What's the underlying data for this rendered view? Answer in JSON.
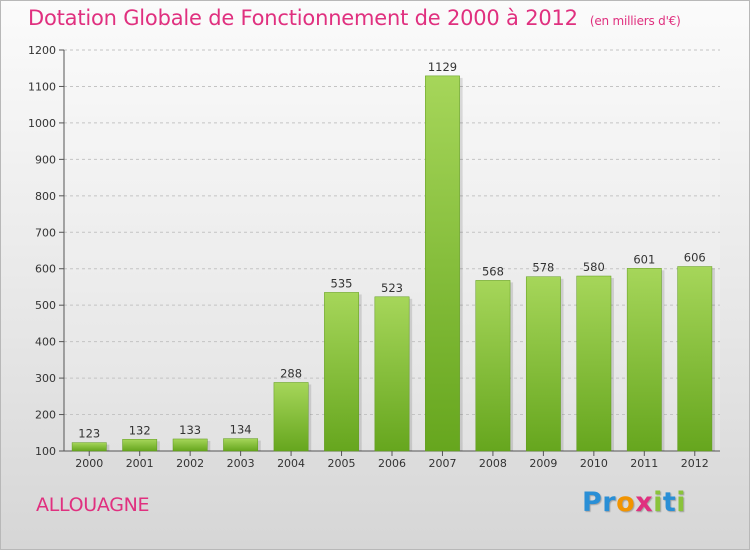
{
  "header": {
    "title": "Dotation Globale de Fonctionnement de 2000 à 2012",
    "unit": "(en milliers d'€)"
  },
  "commune": "ALLOUAGNE",
  "logo": {
    "text": "Proxiti",
    "letters": [
      {
        "ch": "P",
        "color": "#2a8fd6"
      },
      {
        "ch": "r",
        "color": "#2a8fd6"
      },
      {
        "ch": "o",
        "color": "#f29400"
      },
      {
        "ch": "x",
        "color": "#e0307f"
      },
      {
        "ch": "i",
        "color": "#8ac33a"
      },
      {
        "ch": "t",
        "color": "#2a8fd6"
      },
      {
        "ch": "i",
        "color": "#8ac33a"
      }
    ]
  },
  "chart_data": {
    "type": "bar",
    "title": "Dotation Globale de Fonctionnement de 2000 à 2012",
    "subtitle": "(en milliers d'€)",
    "xlabel": "",
    "ylabel": "",
    "categories": [
      "2000",
      "2001",
      "2002",
      "2003",
      "2004",
      "2005",
      "2006",
      "2007",
      "2008",
      "2009",
      "2010",
      "2011",
      "2012"
    ],
    "values": [
      123,
      132,
      133,
      134,
      288,
      535,
      523,
      1129,
      568,
      578,
      580,
      601,
      606
    ],
    "ylim": [
      100,
      1200
    ],
    "yticks": [
      100,
      200,
      300,
      400,
      500,
      600,
      700,
      800,
      900,
      1000,
      1100,
      1200
    ],
    "grid": true,
    "legend": "none",
    "bar_color_top": "#a6d65a",
    "bar_color_bottom": "#66a61e"
  }
}
